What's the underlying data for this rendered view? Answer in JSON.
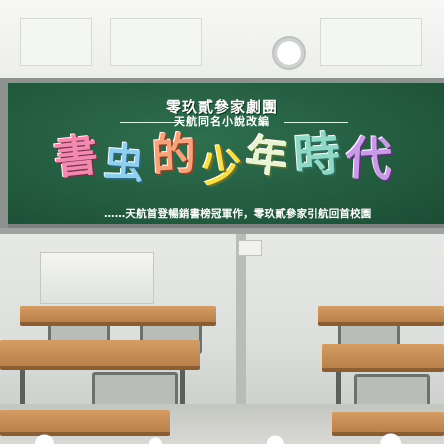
{
  "troupe_name": "零玖貳參家劇團",
  "subtitle": "天航同名小說改編",
  "title_chars": [
    "書",
    "虫",
    "的",
    "少",
    "年",
    "時",
    "代"
  ],
  "tagline": "……天航首登暢銷書榜冠軍作，零玖貳參家引航回首校園",
  "colors": {
    "board": "#245d40",
    "title_pink": "#f28ab0",
    "title_blue": "#8fd0ee",
    "title_orange": "#f6a27a",
    "title_yellow": "#f4e04a",
    "title_cream": "#e9f5d2",
    "title_teal": "#8fd8c6",
    "title_purple": "#c89be6",
    "desk_wood": "#c98f58"
  }
}
